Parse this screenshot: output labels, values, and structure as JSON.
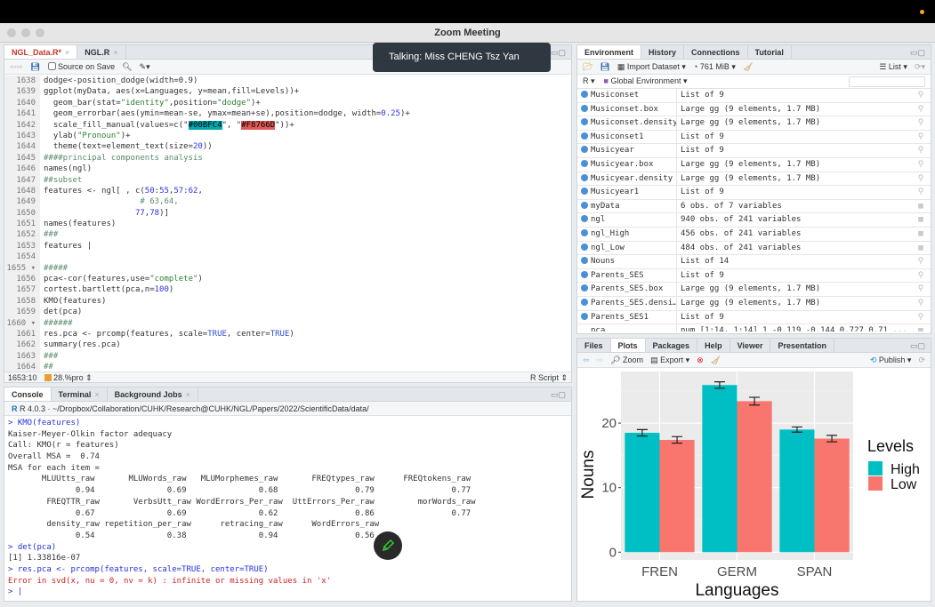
{
  "window_title": "Zoom Meeting",
  "toast": "Talking: Miss CHENG Tsz Yan",
  "editor": {
    "tabs": [
      {
        "label": "NGL_Data.R*",
        "active": true
      },
      {
        "label": "NGL.R",
        "active": false
      }
    ],
    "source_on_save": "Source on Save",
    "lines": [
      {
        "n": "1638",
        "t": [
          [
            "dodge<-position_dodge(width=0.9)",
            ""
          ]
        ]
      },
      {
        "n": "1639",
        "t": [
          [
            "ggplot(myData, aes(x=Languages, y=mean,fill=Levels))+",
            ""
          ]
        ]
      },
      {
        "n": "1640",
        "t": [
          [
            "  geom_bar(stat=",
            ""
          ],
          [
            "\"identity\"",
            "s"
          ],
          [
            ",position=",
            ""
          ],
          [
            "\"dodge\"",
            "s"
          ],
          [
            ")+",
            ""
          ]
        ]
      },
      {
        "n": "1641",
        "t": [
          [
            "  geom_errorbar(aes(ymin=mean-se, ymax=mean+se),position=dodge, width=",
            ""
          ],
          [
            "0.25",
            "n"
          ],
          [
            ")+",
            ""
          ]
        ]
      },
      {
        "n": "1642",
        "t": [
          [
            "  scale_fill_manual(values=c(\"",
            ""
          ],
          [
            "#00BFC4",
            "hl1"
          ],
          [
            "\", \"",
            ""
          ],
          [
            "#F8766D",
            "hl2"
          ],
          [
            "\"))+",
            ""
          ]
        ]
      },
      {
        "n": "1643",
        "t": [
          [
            "  ylab(",
            ""
          ],
          [
            "\"Pronoun\"",
            "s"
          ],
          [
            ")+",
            ""
          ]
        ]
      },
      {
        "n": "1644",
        "t": [
          [
            "  theme(text=element_text(size=",
            ""
          ],
          [
            "20",
            "n"
          ],
          [
            "))",
            ""
          ]
        ]
      },
      {
        "n": "1645",
        "t": [
          [
            "####principal components analysis",
            "c"
          ]
        ]
      },
      {
        "n": "1646",
        "t": [
          [
            "names(ngl)",
            ""
          ]
        ]
      },
      {
        "n": "1647",
        "t": [
          [
            "##subset",
            "c"
          ]
        ]
      },
      {
        "n": "1648",
        "t": [
          [
            "features <- ngl[ , c(",
            ""
          ],
          [
            "50",
            "n"
          ],
          [
            ":",
            ""
          ],
          [
            "55",
            "n"
          ],
          [
            ",",
            ""
          ],
          [
            "57",
            "n"
          ],
          [
            ":",
            ""
          ],
          [
            "62",
            "n"
          ],
          [
            ",",
            ""
          ]
        ]
      },
      {
        "n": "1649",
        "t": [
          [
            "                    # 63,64,",
            "c"
          ]
        ]
      },
      {
        "n": "1650",
        "t": [
          [
            "                   ",
            ""
          ],
          [
            "77",
            "n"
          ],
          [
            ",",
            ""
          ],
          [
            "78",
            "n"
          ],
          [
            ")]",
            ""
          ]
        ]
      },
      {
        "n": "1651",
        "t": [
          [
            "names(features)",
            ""
          ]
        ]
      },
      {
        "n": "1652",
        "t": [
          [
            "###",
            "c"
          ]
        ]
      },
      {
        "n": "1653",
        "t": [
          [
            "features |",
            ""
          ]
        ]
      },
      {
        "n": "1654",
        "t": [
          [
            "",
            ""
          ]
        ]
      },
      {
        "n": "1655 ▾",
        "t": [
          [
            "#####",
            "c"
          ]
        ]
      },
      {
        "n": "1656",
        "t": [
          [
            "pca<-cor(features,use=",
            ""
          ],
          [
            "\"complete\"",
            "s"
          ],
          [
            ")",
            ""
          ]
        ]
      },
      {
        "n": "1657",
        "t": [
          [
            "cortest.bartlett(pca,n=",
            ""
          ],
          [
            "100",
            "n"
          ],
          [
            ")",
            ""
          ]
        ]
      },
      {
        "n": "1658",
        "t": [
          [
            "KMO(features)",
            ""
          ]
        ]
      },
      {
        "n": "1659",
        "t": [
          [
            "det(pca)",
            ""
          ]
        ]
      },
      {
        "n": "1660 ▾",
        "t": [
          [
            "######",
            "c"
          ]
        ]
      },
      {
        "n": "1661",
        "t": [
          [
            "res.pca <- prcomp(features, scale=",
            ""
          ],
          [
            "TRUE",
            "k"
          ],
          [
            ", center=",
            ""
          ],
          [
            "TRUE",
            "k"
          ],
          [
            ")",
            ""
          ]
        ]
      },
      {
        "n": "1662",
        "t": [
          [
            "summary(res.pca)",
            ""
          ]
        ]
      },
      {
        "n": "1663",
        "t": [
          [
            "###",
            "c"
          ]
        ]
      },
      {
        "n": "1664",
        "t": [
          [
            "##",
            "c"
          ]
        ]
      }
    ],
    "status_pos": "1653:10",
    "status_scope": "28.%pro ⇕",
    "status_type": "R Script ⇕"
  },
  "console": {
    "tabs": [
      {
        "label": "Console",
        "active": true
      },
      {
        "label": "Terminal",
        "active": false
      },
      {
        "label": "Background Jobs",
        "active": false
      }
    ],
    "path": "R 4.0.3 · ~/Dropbox/Collaboration/CUHK/Research@CUHK/NGL/Papers/2022/ScientificData/data/",
    "lines": [
      {
        "t": "> KMO(features)",
        "k": "cmd"
      },
      {
        "t": "Kaiser-Meyer-Olkin factor adequacy",
        "k": ""
      },
      {
        "t": "Call: KMO(r = features)",
        "k": ""
      },
      {
        "t": "Overall MSA =  0.74",
        "k": ""
      },
      {
        "t": "MSA for each item = ",
        "k": ""
      },
      {
        "t": "       MLUUtts_raw       MLUWords_raw   MLUMorphemes_raw       FREQtypes_raw      FREQtokens_raw",
        "k": ""
      },
      {
        "t": "              0.94               0.69               0.68                0.79                0.77",
        "k": ""
      },
      {
        "t": "        FREQTTR_raw       VerbsUtt_raw WordErrors_Per_raw  UttErrors_Per_raw         morWords_raw",
        "k": ""
      },
      {
        "t": "              0.67               0.69               0.62                0.86                0.77",
        "k": ""
      },
      {
        "t": "        density_raw repetition_per_raw      retracing_raw      WordErrors_raw",
        "k": ""
      },
      {
        "t": "              0.54               0.38               0.94                0.56",
        "k": ""
      },
      {
        "t": "> det(pca)",
        "k": "cmd"
      },
      {
        "t": "[1] 1.33816e-07",
        "k": ""
      },
      {
        "t": "> res.pca <- prcomp(features, scale=TRUE, center=TRUE)",
        "k": "cmd"
      },
      {
        "t": "Error in svd(x, nu = 0, nv = k) : infinite or missing values in 'x'",
        "k": "err"
      },
      {
        "t": "> |",
        "k": "cmd"
      }
    ]
  },
  "environment": {
    "tabs": [
      {
        "label": "Environment",
        "active": true
      },
      {
        "label": "History",
        "active": false
      },
      {
        "label": "Connections",
        "active": false
      },
      {
        "label": "Tutorial",
        "active": false
      }
    ],
    "import_dataset": "Import Dataset ▾",
    "memory": "761 MiB ▾",
    "view_mode": "List ▾",
    "language": "R ▾",
    "scope": "Global Environment ▾",
    "search_placeholder": "",
    "rows": [
      {
        "name": "Musiconset",
        "value": "List of  9",
        "icon": "search"
      },
      {
        "name": "Musiconset.box",
        "value": "Large gg (9 elements,  1.7 MB)",
        "icon": "search"
      },
      {
        "name": "Musiconset.density",
        "value": "Large gg (9 elements,  1.7 MB)",
        "icon": "search"
      },
      {
        "name": "Musiconset1",
        "value": "List of  9",
        "icon": "search"
      },
      {
        "name": "Musicyear",
        "value": "List of  9",
        "icon": "search"
      },
      {
        "name": "Musicyear.box",
        "value": "Large gg (9 elements,  1.7 MB)",
        "icon": "search"
      },
      {
        "name": "Musicyear.density",
        "value": "Large gg (9 elements,  1.7 MB)",
        "icon": "search"
      },
      {
        "name": "Musicyear1",
        "value": "List of  9",
        "icon": "search"
      },
      {
        "name": "myData",
        "value": "6 obs. of 7 variables",
        "icon": "table"
      },
      {
        "name": "ngl",
        "value": "940 obs. of 241 variables",
        "icon": "table"
      },
      {
        "name": "ngl_High",
        "value": "456 obs. of 241 variables",
        "icon": "table"
      },
      {
        "name": "ngl_Low",
        "value": "484 obs. of 241 variables",
        "icon": "table"
      },
      {
        "name": "Nouns",
        "value": "List of  14",
        "icon": "search"
      },
      {
        "name": "Parents_SES",
        "value": "List of  9",
        "icon": "search"
      },
      {
        "name": "Parents_SES.box",
        "value": "Large gg (9 elements,  1.7 MB)",
        "icon": "search"
      },
      {
        "name": "Parents_SES.densi…",
        "value": "Large gg (9 elements,  1.7 MB)",
        "icon": "search"
      },
      {
        "name": "Parents_SES1",
        "value": "List of  9",
        "icon": "search"
      },
      {
        "name": "pca",
        "value": "num [1:14, 1:14] 1 -0.119 -0.144 0.727 0.71 ...",
        "icon": "table",
        "nobullet": true
      }
    ]
  },
  "plots": {
    "tabs": [
      {
        "label": "Files",
        "active": false
      },
      {
        "label": "Plots",
        "active": true
      },
      {
        "label": "Packages",
        "active": false
      },
      {
        "label": "Help",
        "active": false
      },
      {
        "label": "Viewer",
        "active": false
      },
      {
        "label": "Presentation",
        "active": false
      }
    ],
    "zoom": "Zoom",
    "export": "Export ▾",
    "publish": "Publish ▾"
  },
  "chart_data": {
    "type": "bar",
    "categories": [
      "FREN",
      "GERM",
      "SPAN"
    ],
    "series": [
      {
        "name": "High",
        "values": [
          18.5,
          25.9,
          19.0
        ],
        "errors": [
          0.5,
          0.5,
          0.4
        ],
        "color": "#00BFC4"
      },
      {
        "name": "Low",
        "values": [
          17.4,
          23.4,
          17.6
        ],
        "errors": [
          0.5,
          0.6,
          0.5
        ],
        "color": "#F8766D"
      }
    ],
    "xlabel": "Languages",
    "ylabel": "Nouns",
    "yticks": [
      0,
      10,
      20
    ],
    "ylim": [
      -1.2,
      28
    ],
    "legend_title": "Levels",
    "legend_position": "right",
    "grid": true
  }
}
